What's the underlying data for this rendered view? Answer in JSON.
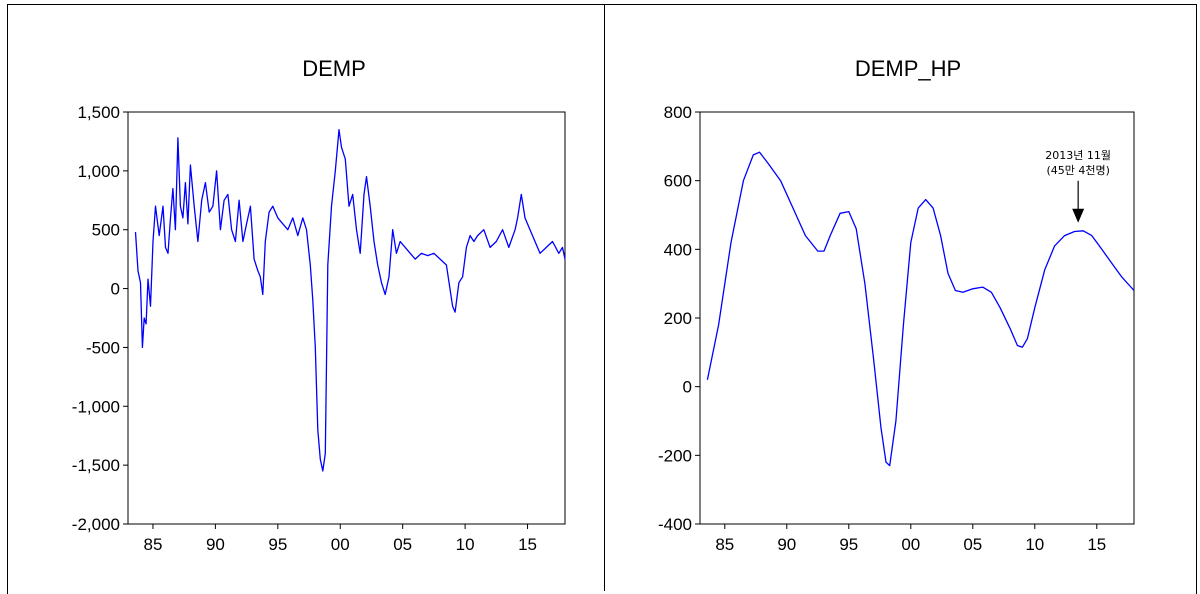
{
  "chart_data": [
    {
      "type": "line",
      "title": "DEMP",
      "xlabel": "",
      "ylabel": "",
      "xlim": [
        1983.0,
        2018.0
      ],
      "ylim": [
        -2000,
        1500
      ],
      "xticks": [
        1985,
        1990,
        1995,
        2000,
        2005,
        2010,
        2015
      ],
      "xtick_labels": [
        "85",
        "90",
        "95",
        "00",
        "05",
        "10",
        "15"
      ],
      "yticks": [
        -2000,
        -1500,
        -1000,
        -500,
        0,
        500,
        1000,
        1500
      ],
      "ytick_labels": [
        "-2,000",
        "-1,500",
        "-1,000",
        "-500",
        "0",
        "500",
        "1,000",
        "1,500"
      ],
      "grid": false,
      "color": "#0000ff",
      "series": [
        {
          "x": [
            1983.6,
            1983.8,
            1984.0,
            1984.15,
            1984.3,
            1984.45,
            1984.6,
            1984.8,
            1985.0,
            1985.2,
            1985.5,
            1985.8,
            1986.0,
            1986.2,
            1986.4,
            1986.6,
            1986.8,
            1987.0,
            1987.2,
            1987.4,
            1987.6,
            1987.8,
            1988.0,
            1988.3,
            1988.6,
            1988.9,
            1989.2,
            1989.5,
            1989.8,
            1990.1,
            1990.4,
            1990.7,
            1991.0,
            1991.3,
            1991.6,
            1991.9,
            1992.2,
            1992.5,
            1992.8,
            1993.1,
            1993.4,
            1993.6,
            1993.8,
            1994.0,
            1994.3,
            1994.6,
            1995.0,
            1995.4,
            1995.8,
            1996.2,
            1996.6,
            1997.0,
            1997.3,
            1997.6,
            1997.8,
            1998.0,
            1998.2,
            1998.4,
            1998.6,
            1998.8,
            1999.0,
            1999.3,
            1999.6,
            1999.9,
            2000.1,
            2000.4,
            2000.7,
            2001.0,
            2001.3,
            2001.6,
            2001.9,
            2002.1,
            2002.4,
            2002.7,
            2003.0,
            2003.3,
            2003.6,
            2003.9,
            2004.2,
            2004.5,
            2004.8,
            2005.2,
            2005.6,
            2006.0,
            2006.5,
            2007.0,
            2007.5,
            2008.0,
            2008.5,
            2009.0,
            2009.2,
            2009.5,
            2009.8,
            2010.1,
            2010.4,
            2010.7,
            2011.0,
            2011.5,
            2012.0,
            2012.5,
            2013.0,
            2013.5,
            2014.0,
            2014.2,
            2014.5,
            2014.8,
            2015.2,
            2015.6,
            2016.0,
            2016.5,
            2017.0,
            2017.5,
            2017.8,
            2018.0
          ],
          "y": [
            480,
            150,
            50,
            -500,
            -250,
            -300,
            80,
            -150,
            400,
            700,
            450,
            700,
            350,
            300,
            600,
            850,
            500,
            1280,
            700,
            600,
            900,
            550,
            1050,
            700,
            400,
            750,
            900,
            650,
            700,
            1000,
            500,
            750,
            800,
            500,
            400,
            750,
            400,
            550,
            700,
            250,
            150,
            100,
            -50,
            400,
            650,
            700,
            600,
            550,
            500,
            600,
            450,
            600,
            500,
            200,
            -100,
            -500,
            -1200,
            -1450,
            -1550,
            -1400,
            200,
            700,
            1000,
            1350,
            1200,
            1100,
            700,
            800,
            500,
            300,
            800,
            950,
            700,
            400,
            200,
            50,
            -50,
            100,
            500,
            300,
            400,
            350,
            300,
            250,
            300,
            280,
            300,
            250,
            200,
            -150,
            -200,
            50,
            100,
            350,
            450,
            400,
            450,
            500,
            350,
            400,
            500,
            350,
            500,
            600,
            800,
            600,
            500,
            400,
            300,
            350,
            400,
            300,
            350,
            250
          ]
        }
      ]
    },
    {
      "type": "line",
      "title": "DEMP_HP",
      "xlabel": "",
      "ylabel": "",
      "xlim": [
        1983.0,
        2018.0
      ],
      "ylim": [
        -400,
        800
      ],
      "xticks": [
        1985,
        1990,
        1995,
        2000,
        2005,
        2010,
        2015
      ],
      "xtick_labels": [
        "85",
        "90",
        "95",
        "00",
        "05",
        "10",
        "15"
      ],
      "yticks": [
        -400,
        -200,
        0,
        200,
        400,
        600,
        800
      ],
      "ytick_labels": [
        "-400",
        "-200",
        "0",
        "200",
        "400",
        "600",
        "800"
      ],
      "grid": false,
      "color": "#0000ff",
      "annotation": {
        "text_line1": "2013년 11월",
        "text_line2": "(45만 4천명)",
        "x": 2013.9,
        "y": 454
      },
      "series": [
        {
          "x": [
            1983.6,
            1984.5,
            1985.5,
            1986.5,
            1987.3,
            1987.8,
            1988.5,
            1989.5,
            1990.5,
            1991.5,
            1992.5,
            1993.0,
            1993.5,
            1994.3,
            1995.0,
            1995.6,
            1996.3,
            1997.0,
            1997.6,
            1998.0,
            1998.3,
            1998.8,
            1999.4,
            2000.0,
            2000.6,
            2001.2,
            2001.8,
            2002.4,
            2003.0,
            2003.6,
            2004.2,
            2005.0,
            2005.8,
            2006.5,
            2007.2,
            2008.0,
            2008.6,
            2009.0,
            2009.4,
            2010.0,
            2010.8,
            2011.6,
            2012.4,
            2013.2,
            2013.9,
            2014.6,
            2015.4,
            2016.2,
            2017.0,
            2018.0
          ],
          "y": [
            20,
            180,
            420,
            600,
            675,
            683,
            650,
            600,
            520,
            440,
            395,
            395,
            440,
            505,
            510,
            460,
            300,
            80,
            -120,
            -220,
            -230,
            -100,
            180,
            420,
            520,
            545,
            520,
            440,
            330,
            280,
            275,
            285,
            290,
            275,
            230,
            170,
            120,
            115,
            140,
            230,
            340,
            410,
            440,
            452,
            454,
            440,
            400,
            360,
            320,
            280
          ]
        }
      ]
    }
  ]
}
